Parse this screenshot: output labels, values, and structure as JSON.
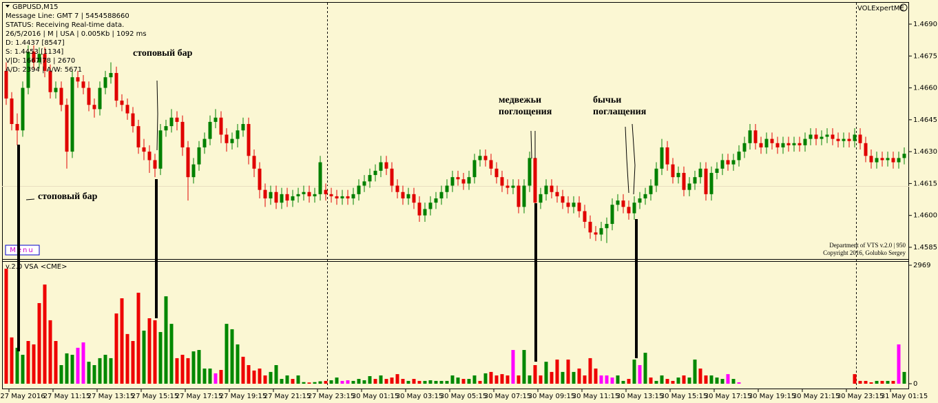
{
  "info_lines": [
    "GBPUSD,M15",
    "Message Line: GMT 7 | 5454588660",
    "STATUS:  Receiving Real-time data.",
    "26/5/2016 | M | USA | 0.005Kb | 1092 ms",
    "D: 1.4437  [8547]",
    "S: 1.4453  [1134]",
    "V|D: 1667|78 | 2670",
    "A/D: 2394 | A/W: 5671"
  ],
  "brand": "VOLExpertME",
  "menu": "Menu",
  "credits": [
    "Department of VTS  v.2.0 | 950",
    "Copyright 2016, Golubko Sergey"
  ],
  "annotations": [
    "стоповый бар",
    "стоповый бар",
    "медвежьи",
    "поглощения",
    "бычьи",
    "поглащения"
  ],
  "chart_data": [
    {
      "type": "candlestick",
      "up_color": "#008000",
      "down_color": "#e00000",
      "ylim": [
        1.458,
        1.47
      ],
      "yticks": [
        {
          "value": 1.469,
          "label": "1.4690"
        },
        {
          "value": 1.4675,
          "label": "1.4675"
        },
        {
          "value": 1.466,
          "label": "1.4660"
        },
        {
          "value": 1.4645,
          "label": "1.4645"
        },
        {
          "value": 1.463,
          "label": "1.4630"
        },
        {
          "value": 1.4615,
          "label": "1.4615"
        },
        {
          "value": 1.46,
          "label": "1.4600"
        },
        {
          "value": 1.4585,
          "label": "1.4585"
        }
      ],
      "open": [
        1.4668,
        1.4655,
        1.4643,
        1.464,
        1.466,
        1.4677,
        1.4672,
        1.4676,
        1.4668,
        1.4658,
        1.466,
        1.4652,
        1.463,
        1.4665,
        1.4663,
        1.466,
        1.4652,
        1.465,
        1.466,
        1.4665,
        1.4667,
        1.4654,
        1.4652,
        1.4648,
        1.4642,
        1.4632,
        1.463,
        1.4626,
        1.4622,
        1.464,
        1.4642,
        1.4646,
        1.4644,
        1.4632,
        1.4618,
        1.4624,
        1.4632,
        1.4636,
        1.4644,
        1.4646,
        1.4638,
        1.4634,
        1.4636,
        1.464,
        1.4643,
        1.4628,
        1.4622,
        1.4612,
        1.4608,
        1.4611,
        1.4606,
        1.461,
        1.4607,
        1.4609,
        1.461,
        1.4611,
        1.4609,
        1.461,
        1.4612,
        1.461,
        1.4609,
        1.4608,
        1.4609,
        1.4608,
        1.461,
        1.4614,
        1.4616,
        1.4619,
        1.4621,
        1.4625,
        1.4622,
        1.4614,
        1.4611,
        1.4608,
        1.461,
        1.4606,
        1.46,
        1.4603,
        1.4606,
        1.4608,
        1.4611,
        1.4614,
        1.4618,
        1.4617,
        1.4615,
        1.4618,
        1.4626,
        1.4628,
        1.4626,
        1.4622,
        1.4618,
        1.4614,
        1.4613,
        1.4614,
        1.4604,
        1.4614,
        1.4627,
        1.4606,
        1.461,
        1.4614,
        1.4611,
        1.4609,
        1.4606,
        1.4604,
        1.4606,
        1.4602,
        1.4597,
        1.4592,
        1.4591,
        1.4594,
        1.4596,
        1.4605,
        1.4607,
        1.4604,
        1.4601,
        1.4606,
        1.4608,
        1.461,
        1.4614,
        1.4622,
        1.4632,
        1.4624,
        1.4618,
        1.462,
        1.4612,
        1.4615,
        1.4618,
        1.4622,
        1.461,
        1.462,
        1.4622,
        1.4626,
        1.4624,
        1.4626,
        1.463,
        1.4634,
        1.464,
        1.4634,
        1.4632,
        1.4636,
        1.4634,
        1.4632,
        1.4634,
        1.4633,
        1.4634,
        1.4633,
        1.4636,
        1.4638,
        1.4636,
        1.4637,
        1.4638,
        1.4636,
        1.4635,
        1.4636,
        1.4635,
        1.4638,
        1.4634,
        1.4628,
        1.4625,
        1.4627,
        1.4626,
        1.4627,
        1.4625,
        1.4627
      ],
      "high": [
        1.4672,
        1.4658,
        1.4648,
        1.4663,
        1.468,
        1.468,
        1.4679,
        1.4679,
        1.4671,
        1.4663,
        1.4663,
        1.4655,
        1.4668,
        1.4668,
        1.4666,
        1.4663,
        1.4655,
        1.4663,
        1.4668,
        1.4672,
        1.467,
        1.4657,
        1.4655,
        1.4651,
        1.4645,
        1.4636,
        1.4633,
        1.4629,
        1.4643,
        1.4645,
        1.465,
        1.4649,
        1.4647,
        1.4635,
        1.4627,
        1.4635,
        1.4639,
        1.4647,
        1.465,
        1.4649,
        1.4641,
        1.4639,
        1.4643,
        1.4646,
        1.4646,
        1.4631,
        1.4625,
        1.4615,
        1.4614,
        1.4614,
        1.4613,
        1.4613,
        1.4612,
        1.4613,
        1.4614,
        1.4614,
        1.4613,
        1.4628,
        1.4615,
        1.4613,
        1.4612,
        1.4612,
        1.4612,
        1.4613,
        1.4617,
        1.4619,
        1.4622,
        1.4624,
        1.4628,
        1.4628,
        1.4625,
        1.4617,
        1.4614,
        1.4613,
        1.4613,
        1.4609,
        1.4606,
        1.4609,
        1.4611,
        1.4614,
        1.4617,
        1.4621,
        1.4621,
        1.462,
        1.4621,
        1.4629,
        1.4631,
        1.4631,
        1.4629,
        1.4625,
        1.4621,
        1.4617,
        1.4617,
        1.4617,
        1.4617,
        1.463,
        1.463,
        1.4613,
        1.4617,
        1.4617,
        1.4614,
        1.4612,
        1.4609,
        1.4609,
        1.4609,
        1.4605,
        1.46,
        1.4595,
        1.4597,
        1.4599,
        1.4608,
        1.461,
        1.461,
        1.4607,
        1.4609,
        1.4611,
        1.4613,
        1.4617,
        1.4625,
        1.4636,
        1.4635,
        1.4627,
        1.4623,
        1.4623,
        1.4618,
        1.4621,
        1.4625,
        1.4625,
        1.4623,
        1.4625,
        1.4629,
        1.4629,
        1.4629,
        1.4633,
        1.4637,
        1.4643,
        1.4643,
        1.4637,
        1.4639,
        1.4639,
        1.4637,
        1.4637,
        1.4637,
        1.4637,
        1.4637,
        1.4639,
        1.4641,
        1.4641,
        1.464,
        1.4641,
        1.4641,
        1.4639,
        1.4639,
        1.4639,
        1.4641,
        1.4641,
        1.4637,
        1.4631,
        1.463,
        1.463,
        1.463,
        1.463,
        1.463,
        1.4632
      ],
      "low": [
        1.4652,
        1.464,
        1.4633,
        1.4637,
        1.4657,
        1.4669,
        1.4669,
        1.4665,
        1.4655,
        1.4655,
        1.4649,
        1.4622,
        1.4627,
        1.466,
        1.4657,
        1.4649,
        1.4646,
        1.4647,
        1.4657,
        1.4662,
        1.4651,
        1.4649,
        1.4645,
        1.4639,
        1.4629,
        1.4626,
        1.462,
        1.4618,
        1.4619,
        1.4637,
        1.4639,
        1.464,
        1.4628,
        1.4607,
        1.4615,
        1.4621,
        1.4629,
        1.4633,
        1.4641,
        1.4634,
        1.463,
        1.4631,
        1.4632,
        1.4637,
        1.4624,
        1.4618,
        1.4608,
        1.4604,
        1.4605,
        1.4603,
        1.4603,
        1.4604,
        1.4604,
        1.4606,
        1.4607,
        1.4606,
        1.4606,
        1.4607,
        1.4607,
        1.4606,
        1.4605,
        1.4605,
        1.4605,
        1.4605,
        1.4607,
        1.4611,
        1.4613,
        1.4616,
        1.4618,
        1.4619,
        1.4611,
        1.4608,
        1.4605,
        1.4605,
        1.4603,
        1.4597,
        1.4597,
        1.46,
        1.4603,
        1.4605,
        1.4608,
        1.4611,
        1.4614,
        1.4612,
        1.4612,
        1.4615,
        1.4623,
        1.4623,
        1.4619,
        1.4615,
        1.4611,
        1.461,
        1.461,
        1.4601,
        1.4601,
        1.4611,
        1.4603,
        1.4603,
        1.4607,
        1.4608,
        1.4606,
        1.4603,
        1.4601,
        1.4601,
        1.4599,
        1.4594,
        1.4589,
        1.4588,
        1.4588,
        1.4587,
        1.4593,
        1.4602,
        1.4601,
        1.4598,
        1.4598,
        1.4603,
        1.4605,
        1.4607,
        1.4611,
        1.4619,
        1.4621,
        1.4615,
        1.4615,
        1.4609,
        1.4609,
        1.4612,
        1.4615,
        1.4607,
        1.4607,
        1.4617,
        1.4619,
        1.4621,
        1.4621,
        1.4623,
        1.4627,
        1.4631,
        1.4631,
        1.4629,
        1.4629,
        1.4631,
        1.4629,
        1.4629,
        1.463,
        1.463,
        1.463,
        1.463,
        1.4633,
        1.4633,
        1.4633,
        1.4634,
        1.4633,
        1.4632,
        1.4632,
        1.4632,
        1.4632,
        1.4631,
        1.4625,
        1.4622,
        1.4622,
        1.4623,
        1.4623,
        1.4622,
        1.4622,
        1.4624
      ],
      "close": [
        1.4655,
        1.4643,
        1.464,
        1.466,
        1.4677,
        1.4672,
        1.4676,
        1.4668,
        1.4658,
        1.466,
        1.4652,
        1.463,
        1.4665,
        1.4663,
        1.466,
        1.4652,
        1.465,
        1.466,
        1.4665,
        1.4667,
        1.4654,
        1.4652,
        1.4648,
        1.4642,
        1.4632,
        1.463,
        1.4626,
        1.4622,
        1.464,
        1.4642,
        1.4646,
        1.4644,
        1.4632,
        1.4618,
        1.4624,
        1.4632,
        1.4636,
        1.4644,
        1.4646,
        1.4638,
        1.4634,
        1.4636,
        1.464,
        1.4643,
        1.4628,
        1.4622,
        1.4612,
        1.4608,
        1.4611,
        1.4606,
        1.461,
        1.4607,
        1.4609,
        1.461,
        1.4611,
        1.4609,
        1.461,
        1.4625,
        1.461,
        1.4609,
        1.4608,
        1.4609,
        1.4608,
        1.461,
        1.4614,
        1.4616,
        1.4619,
        1.4621,
        1.4625,
        1.4622,
        1.4614,
        1.4611,
        1.4608,
        1.461,
        1.4606,
        1.46,
        1.4603,
        1.4606,
        1.4608,
        1.4611,
        1.4614,
        1.4618,
        1.4617,
        1.4615,
        1.4618,
        1.4626,
        1.4628,
        1.4626,
        1.4622,
        1.4618,
        1.4614,
        1.4613,
        1.4614,
        1.4604,
        1.4614,
        1.4627,
        1.4606,
        1.461,
        1.4614,
        1.4611,
        1.4609,
        1.4606,
        1.4604,
        1.4606,
        1.4602,
        1.4597,
        1.4592,
        1.4591,
        1.4594,
        1.4596,
        1.4605,
        1.4607,
        1.4604,
        1.4601,
        1.4606,
        1.4608,
        1.461,
        1.4614,
        1.4622,
        1.4632,
        1.4624,
        1.4618,
        1.462,
        1.4612,
        1.4615,
        1.4618,
        1.4622,
        1.461,
        1.462,
        1.4622,
        1.4626,
        1.4624,
        1.4626,
        1.463,
        1.4634,
        1.464,
        1.4634,
        1.4632,
        1.4636,
        1.4634,
        1.4632,
        1.4634,
        1.4633,
        1.4634,
        1.4633,
        1.4636,
        1.4638,
        1.4636,
        1.4637,
        1.4638,
        1.4636,
        1.4635,
        1.4636,
        1.4635,
        1.4638,
        1.4634,
        1.4628,
        1.4625,
        1.4627,
        1.4626,
        1.4627,
        1.4625,
        1.4627,
        1.4629
      ]
    },
    {
      "type": "bar",
      "title": "v.2.0 VSA <CME>",
      "ylim": [
        0,
        2969
      ],
      "yticks": [
        0,
        2969
      ],
      "values": [
        2880,
        1160,
        900,
        725,
        1070,
        985,
        2020,
        2485,
        1590,
        1070,
        466,
        760,
        725,
        900,
        1035,
        550,
        466,
        640,
        725,
        640,
        1760,
        2140,
        1245,
        1070,
        2280,
        1330,
        1640,
        1590,
        1295,
        2190,
        1500,
        640,
        725,
        640,
        810,
        845,
        380,
        380,
        260,
        345,
        1500,
        1365,
        985,
        675,
        466,
        330,
        380,
        207,
        295,
        466,
        120,
        207,
        120,
        207,
        40,
        30,
        40,
        60,
        70,
        86,
        155,
        70,
        86,
        70,
        120,
        86,
        190,
        120,
        207,
        120,
        155,
        240,
        120,
        70,
        120,
        70,
        70,
        86,
        70,
        70,
        70,
        207,
        155,
        120,
        120,
        207,
        70,
        260,
        295,
        207,
        240,
        207,
        845,
        207,
        845,
        207,
        466,
        207,
        550,
        295,
        605,
        295,
        605,
        295,
        380,
        207,
        640,
        380,
        207,
        207,
        155,
        207,
        70,
        120,
        605,
        466,
        775,
        155,
        70,
        207,
        120,
        70,
        155,
        207,
        155,
        605,
        380,
        207,
        207,
        155,
        120,
        240,
        120,
        35,
        0,
        0,
        0,
        0,
        0,
        0,
        0,
        0,
        0,
        0,
        0,
        0,
        0,
        0,
        0,
        0,
        0,
        0,
        0,
        0,
        240,
        70,
        70,
        35,
        70,
        70,
        70,
        70,
        985,
        295
      ],
      "colors": [
        "#e00",
        "#e00",
        "#080",
        "#080",
        "#e00",
        "#e00",
        "#e00",
        "#e00",
        "#e00",
        "#e00",
        "#080",
        "#080",
        "#080",
        "#f0f",
        "#f0f",
        "#080",
        "#080",
        "#080",
        "#080",
        "#080",
        "#e00",
        "#e00",
        "#e00",
        "#e00",
        "#e00",
        "#080",
        "#e00",
        "#e00",
        "#080",
        "#080",
        "#080",
        "#e00",
        "#e00",
        "#e00",
        "#080",
        "#080",
        "#080",
        "#080",
        "#f0f",
        "#e00",
        "#080",
        "#080",
        "#080",
        "#e00",
        "#e00",
        "#e00",
        "#e00",
        "#e00",
        "#080",
        "#080",
        "#080",
        "#080",
        "#e00",
        "#080",
        "#080",
        "#e00",
        "#080",
        "#080",
        "#e00",
        "#080",
        "#080",
        "#f0f",
        "#f0f",
        "#080",
        "#080",
        "#080",
        "#080",
        "#e00",
        "#080",
        "#e00",
        "#e00",
        "#e00",
        "#e00",
        "#080",
        "#e00",
        "#e00",
        "#080",
        "#080",
        "#080",
        "#080",
        "#080",
        "#080",
        "#080",
        "#e00",
        "#080",
        "#080",
        "#e00",
        "#080",
        "#e00",
        "#e00",
        "#e00",
        "#e00",
        "#f0f",
        "#e00",
        "#080",
        "#080",
        "#e00",
        "#e00",
        "#080",
        "#e00",
        "#e00",
        "#080",
        "#e00",
        "#080",
        "#e00",
        "#e00",
        "#e00",
        "#e00",
        "#f0f",
        "#f0f",
        "#f0f",
        "#080",
        "#080",
        "#e00",
        "#080",
        "#f0f",
        "#080",
        "#e00",
        "#080",
        "#080",
        "#e00",
        "#e00",
        "#080",
        "#e00",
        "#080",
        "#080",
        "#e00",
        "#e00",
        "#080",
        "#080",
        "#080",
        "#f0f",
        "#080",
        "#f0f",
        "#080",
        "#080",
        "#080",
        "#080",
        "#080",
        "#080",
        "#080",
        "#080",
        "#080",
        "#080",
        "#080",
        "#080",
        "#080",
        "#080",
        "#080",
        "#080",
        "#080",
        "#080",
        "#080",
        "#080",
        "#e00",
        "#e00",
        "#e00",
        "#e00",
        "#080",
        "#e00",
        "#080",
        "#e00",
        "#f0f",
        "#080"
      ],
      "x_labels": [
        "27 May 2016",
        "27 May 11:15",
        "27 May 13:15",
        "27 May 15:15",
        "27 May 17:15",
        "27 May 19:15",
        "27 May 21:15",
        "27 May 23:15",
        "30 May 01:15",
        "30 May 03:15",
        "30 May 05:15",
        "30 May 07:15",
        "30 May 09:15",
        "30 May 11:15",
        "30 May 13:15",
        "30 May 15:15",
        "30 May 17:15",
        "30 May 19:15",
        "30 May 21:15",
        "30 May 23:15",
        "31 May 01:15"
      ]
    }
  ]
}
